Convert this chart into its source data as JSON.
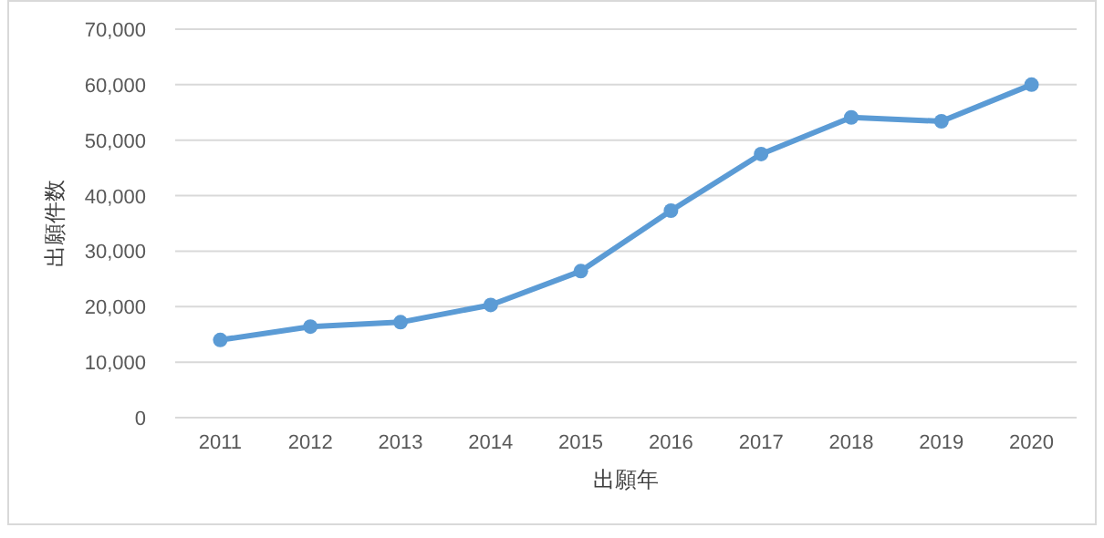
{
  "chart_data": {
    "type": "line",
    "xlabel": "出願年",
    "ylabel": "出願件数",
    "categories": [
      "2011",
      "2012",
      "2013",
      "2014",
      "2015",
      "2016",
      "2017",
      "2018",
      "2019",
      "2020"
    ],
    "series": [
      {
        "color": "#5b9bd5",
        "values": [
          14000,
          16400,
          17200,
          20300,
          26400,
          37300,
          47500,
          54100,
          53400,
          60000
        ]
      }
    ],
    "ylim": [
      0,
      70000
    ],
    "yticks": [
      {
        "value": 0,
        "label": "0"
      },
      {
        "value": 10000,
        "label": "10,000"
      },
      {
        "value": 20000,
        "label": "20,000"
      },
      {
        "value": 30000,
        "label": "30,000"
      },
      {
        "value": 40000,
        "label": "40,000"
      },
      {
        "value": 50000,
        "label": "50,000"
      },
      {
        "value": 60000,
        "label": "60,000"
      },
      {
        "value": 70000,
        "label": "70,000"
      }
    ],
    "grid": "y",
    "marker": "circle"
  }
}
